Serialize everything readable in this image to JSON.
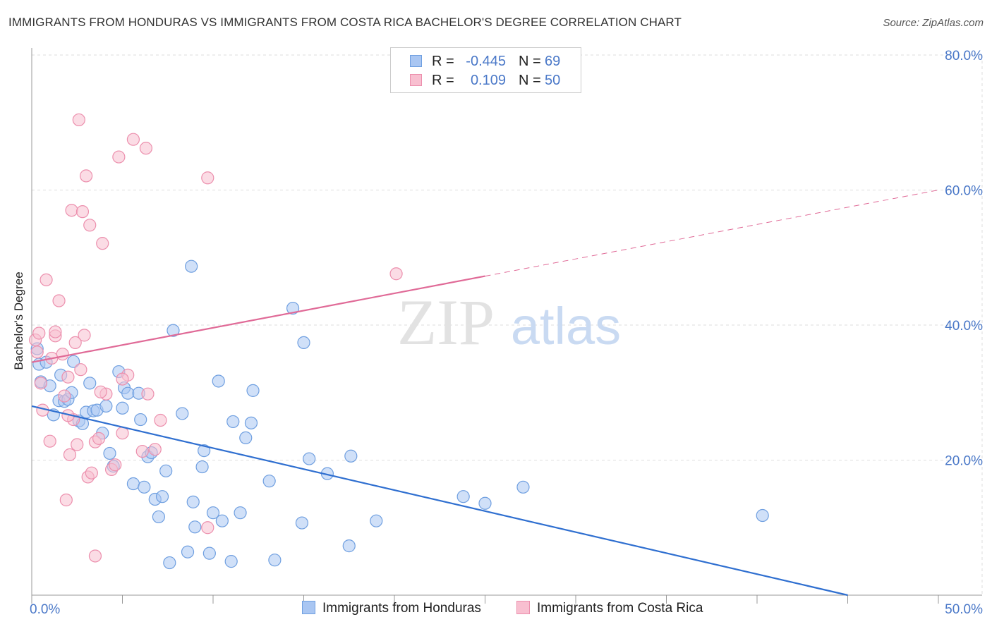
{
  "title": "IMMIGRANTS FROM HONDURAS VS IMMIGRANTS FROM COSTA RICA BACHELOR'S DEGREE CORRELATION CHART",
  "source": "Source: ZipAtlas.com",
  "watermark": {
    "zip": "ZIP",
    "atlas": "atlas"
  },
  "stats": [
    {
      "swatch_color": "#a9c6f2",
      "border_color": "#6f9fe0",
      "r_label": "R =",
      "r_value": "-0.445",
      "n_label": "N =",
      "n_value": "69"
    },
    {
      "swatch_color": "#f8bfd0",
      "border_color": "#ec8fad",
      "r_label": "R =",
      "r_value": "0.109",
      "n_label": "N =",
      "n_value": "50"
    }
  ],
  "chart_data": {
    "type": "scatter",
    "title": "IMMIGRANTS FROM HONDURAS VS IMMIGRANTS FROM COSTA RICA BACHELOR'S DEGREE CORRELATION CHART",
    "xlabel": "",
    "ylabel": "Bachelor's Degree",
    "xlim": [
      0,
      50
    ],
    "ylim": [
      0,
      80
    ],
    "x_tick_labels": [
      "0.0%",
      "50.0%"
    ],
    "y_ticks": [
      20,
      40,
      60,
      80
    ],
    "y_tick_labels": [
      "20.0%",
      "40.0%",
      "60.0%",
      "80.0%"
    ],
    "grid": true,
    "legend_position": "bottom-center",
    "series": [
      {
        "name": "Immigrants from Honduras",
        "color": "#6f9fe0",
        "fill": "#a9c6f2",
        "points": [
          [
            0.3,
            36.5
          ],
          [
            0.4,
            34.2
          ],
          [
            0.5,
            31.6
          ],
          [
            0.8,
            34.5
          ],
          [
            1.0,
            31.0
          ],
          [
            1.2,
            26.7
          ],
          [
            1.5,
            28.8
          ],
          [
            1.6,
            32.6
          ],
          [
            1.8,
            28.7
          ],
          [
            2.0,
            29.0
          ],
          [
            2.2,
            30.0
          ],
          [
            2.3,
            34.6
          ],
          [
            2.6,
            25.8
          ],
          [
            2.8,
            25.4
          ],
          [
            3.0,
            27.1
          ],
          [
            3.2,
            31.4
          ],
          [
            3.4,
            27.3
          ],
          [
            3.6,
            27.4
          ],
          [
            3.9,
            24.0
          ],
          [
            4.1,
            28.0
          ],
          [
            4.3,
            21.0
          ],
          [
            4.5,
            19.1
          ],
          [
            4.8,
            33.1
          ],
          [
            5.0,
            27.7
          ],
          [
            5.1,
            30.7
          ],
          [
            5.3,
            29.9
          ],
          [
            5.6,
            16.5
          ],
          [
            5.9,
            29.9
          ],
          [
            6.0,
            26.0
          ],
          [
            6.2,
            16.0
          ],
          [
            6.4,
            20.5
          ],
          [
            6.6,
            21.1
          ],
          [
            6.8,
            14.2
          ],
          [
            7.0,
            11.6
          ],
          [
            7.2,
            14.6
          ],
          [
            7.4,
            18.4
          ],
          [
            7.6,
            4.8
          ],
          [
            7.8,
            39.2
          ],
          [
            8.3,
            26.9
          ],
          [
            8.6,
            6.4
          ],
          [
            8.8,
            48.7
          ],
          [
            8.9,
            13.8
          ],
          [
            9.0,
            10.1
          ],
          [
            9.4,
            19.0
          ],
          [
            9.5,
            21.4
          ],
          [
            9.8,
            6.2
          ],
          [
            10.0,
            12.2
          ],
          [
            10.3,
            31.7
          ],
          [
            10.5,
            11.0
          ],
          [
            11.0,
            5.0
          ],
          [
            11.1,
            25.7
          ],
          [
            11.5,
            12.2
          ],
          [
            11.8,
            23.3
          ],
          [
            12.1,
            25.5
          ],
          [
            12.2,
            30.3
          ],
          [
            13.1,
            16.9
          ],
          [
            13.4,
            5.2
          ],
          [
            14.4,
            42.5
          ],
          [
            14.9,
            10.7
          ],
          [
            15.0,
            37.4
          ],
          [
            15.3,
            20.2
          ],
          [
            16.3,
            18.0
          ],
          [
            17.5,
            7.3
          ],
          [
            17.6,
            20.6
          ],
          [
            19.0,
            11.0
          ],
          [
            23.8,
            14.6
          ],
          [
            25.0,
            13.6
          ],
          [
            27.1,
            16.0
          ],
          [
            40.3,
            11.8
          ]
        ]
      },
      {
        "name": "Immigrants from Costa Rica",
        "color": "#ec8fad",
        "fill": "#f8bfd0",
        "points": [
          [
            0.2,
            37.8
          ],
          [
            0.3,
            36.0
          ],
          [
            0.4,
            38.8
          ],
          [
            0.6,
            27.4
          ],
          [
            0.8,
            46.7
          ],
          [
            1.0,
            22.8
          ],
          [
            1.3,
            38.4
          ],
          [
            1.3,
            39.0
          ],
          [
            1.5,
            43.6
          ],
          [
            1.7,
            35.7
          ],
          [
            1.8,
            29.5
          ],
          [
            1.9,
            14.1
          ],
          [
            2.0,
            32.3
          ],
          [
            2.1,
            20.8
          ],
          [
            2.2,
            57.0
          ],
          [
            2.3,
            26.0
          ],
          [
            2.4,
            37.4
          ],
          [
            2.5,
            22.3
          ],
          [
            2.6,
            70.4
          ],
          [
            2.7,
            33.4
          ],
          [
            2.8,
            56.8
          ],
          [
            2.9,
            38.5
          ],
          [
            3.0,
            62.1
          ],
          [
            3.1,
            17.5
          ],
          [
            3.2,
            54.8
          ],
          [
            3.3,
            18.1
          ],
          [
            3.5,
            5.8
          ],
          [
            3.5,
            22.7
          ],
          [
            3.7,
            23.2
          ],
          [
            3.9,
            52.1
          ],
          [
            4.1,
            29.8
          ],
          [
            4.4,
            18.6
          ],
          [
            4.8,
            64.9
          ],
          [
            5.0,
            24.0
          ],
          [
            5.3,
            32.6
          ],
          [
            5.6,
            67.5
          ],
          [
            6.1,
            21.3
          ],
          [
            6.3,
            66.2
          ],
          [
            6.4,
            29.8
          ],
          [
            7.1,
            25.9
          ],
          [
            9.7,
            10.0
          ],
          [
            9.7,
            61.8
          ],
          [
            20.1,
            47.6
          ],
          [
            2.0,
            26.6
          ],
          [
            4.6,
            19.3
          ],
          [
            1.1,
            35.1
          ],
          [
            0.5,
            31.4
          ],
          [
            6.8,
            21.6
          ],
          [
            5.0,
            32.0
          ],
          [
            3.8,
            30.1
          ]
        ]
      }
    ],
    "trend_lines": [
      {
        "series": "Immigrants from Honduras",
        "x0": 0,
        "y0": 28.0,
        "x1": 45.0,
        "y1": 0,
        "dashed_from": null
      },
      {
        "series": "Immigrants from Costa Rica",
        "x0": 0,
        "y0": 34.5,
        "x1": 50.0,
        "y1": 60.0,
        "dashed_from": 25.0
      }
    ]
  },
  "legend": [
    {
      "label": "Immigrants from Honduras",
      "fill": "#a9c6f2",
      "border": "#6f9fe0"
    },
    {
      "label": "Immigrants from Costa Rica",
      "fill": "#f8bfd0",
      "border": "#ec8fad"
    }
  ],
  "colors": {
    "axis_tick_label": "#4a78c8",
    "blue_line": "#2f6fd0",
    "pink_line": "#e06a97",
    "grid": "#dddddd"
  }
}
